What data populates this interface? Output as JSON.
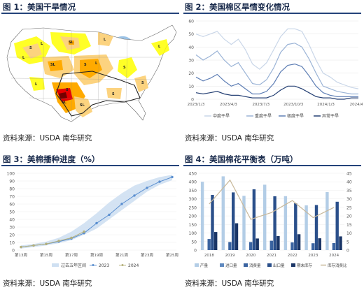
{
  "panels": {
    "p1": {
      "title": "图 1：美国干旱情况",
      "source": "资料来源：USDA 南华研究"
    },
    "p2": {
      "title": "图 2：美国棉区旱情变化情况",
      "source": "资料来源：USDA 南华研究"
    },
    "p3": {
      "title": "图 3：美棉播种进度（%）",
      "source": "资料来源：USDA 南华研究"
    },
    "p4": {
      "title": "图 4：美国棉花平衡表（万吨）",
      "source": "资料来源：USDA 南华研究"
    }
  },
  "map": {
    "labels": [
      "S",
      "L",
      "SL",
      "L",
      "SL",
      "S",
      "L",
      "S",
      "SL",
      "S",
      "S",
      "L",
      "L",
      "S",
      "SL",
      "L"
    ],
    "colors": {
      "D0": "#ffff00",
      "D1": "#fcd37f",
      "D2": "#ffaa00",
      "D3": "#e60000",
      "D4": "#730000",
      "water": "#9cc3e6",
      "land": "#ffffff"
    }
  },
  "chart_data": [
    {
      "type": "line",
      "x_tick_labels": [
        "2023/1/3",
        "2023/4/3",
        "2023/7/3",
        "2023/10/3",
        "2024/1/3",
        "2024/4/3"
      ],
      "ylim": [
        0,
        60
      ],
      "y_ticks": [
        0,
        10,
        20,
        30,
        40,
        50,
        60
      ],
      "series": [
        {
          "name": "中度干旱",
          "color": "#c9d6e8",
          "values": [
            50,
            48,
            50,
            52,
            46,
            42,
            46,
            38,
            27,
            23,
            28,
            38,
            48,
            54,
            54,
            52,
            42,
            30,
            20,
            17,
            13,
            11,
            9,
            8
          ]
        },
        {
          "name": "重度干旱",
          "color": "#9ab3d6",
          "values": [
            34,
            30,
            33,
            37,
            30,
            25,
            28,
            20,
            12,
            11,
            15,
            24,
            36,
            42,
            43,
            40,
            31,
            20,
            10,
            8,
            6,
            5,
            4,
            4
          ]
        },
        {
          "name": "极度干旱",
          "color": "#5f7fb5",
          "values": [
            17,
            14,
            16,
            19,
            14,
            10,
            12,
            8,
            4,
            4,
            6,
            12,
            21,
            26,
            27,
            25,
            18,
            10,
            5,
            3,
            2,
            2,
            2,
            2
          ]
        },
        {
          "name": "异常干旱",
          "color": "#243f73",
          "values": [
            5,
            4,
            5,
            6,
            4,
            3,
            3,
            2,
            1,
            1,
            1,
            3,
            7,
            10,
            10,
            8,
            5,
            2,
            1,
            1,
            0,
            0,
            1,
            1
          ]
        }
      ]
    },
    {
      "type": "line",
      "categories": [
        "第13周",
        "第14周",
        "第15周",
        "第16周",
        "第17周",
        "第18周",
        "第19周",
        "第20周",
        "第21周",
        "第22周",
        "第23周",
        "第24周",
        "第25周"
      ],
      "x_tick_labels": [
        "第13周",
        "第15周",
        "第17周",
        "第19周",
        "第21周",
        "第23周",
        "第25周"
      ],
      "ylim": [
        0,
        100
      ],
      "y_ticks": [
        0,
        10,
        20,
        30,
        40,
        50,
        60,
        70,
        80,
        90,
        100
      ],
      "band": {
        "name": "过去五年区间",
        "color": "#cfe0f2",
        "lower": [
          2,
          4,
          6,
          9,
          13,
          20,
          28,
          40,
          52,
          64,
          76,
          85,
          91
        ],
        "upper": [
          6,
          8,
          11,
          16,
          24,
          35,
          48,
          62,
          74,
          84,
          90,
          95,
          98
        ]
      },
      "series": [
        {
          "name": "2023",
          "color": "#5b8fd0",
          "values": [
            4,
            6,
            8,
            11,
            15,
            22,
            35,
            46,
            60,
            71,
            81,
            89,
            95
          ]
        },
        {
          "name": "2024",
          "color": "#b5b07a",
          "values": [
            4,
            6,
            8,
            12,
            16,
            24,
            null,
            null,
            null,
            null,
            null,
            null,
            null
          ]
        }
      ]
    },
    {
      "type": "bar",
      "categories": [
        "2018",
        "2019",
        "2020",
        "2021",
        "2022",
        "2023",
        "2024"
      ],
      "y_left": {
        "ylim": [
          0,
          450
        ],
        "ticks": [
          0,
          50,
          100,
          150,
          200,
          250,
          300,
          350,
          400,
          450
        ]
      },
      "y_right": {
        "ylim": [
          0,
          45
        ],
        "ticks": [
          0,
          5,
          10,
          15,
          20,
          25,
          30,
          35,
          40,
          45
        ]
      },
      "series": [
        {
          "name": "产量",
          "color": "#b3cde6",
          "values": [
            400,
            432,
            318,
            383,
            316,
            262,
            340
          ]
        },
        {
          "name": "进口量",
          "color": "#5f89bf",
          "values": [
            0,
            0,
            0,
            0,
            0,
            0,
            0
          ]
        },
        {
          "name": "消费量",
          "color": "#3a63a0",
          "values": [
            65,
            47,
            47,
            55,
            45,
            40,
            41
          ]
        },
        {
          "name": "出口量",
          "color": "#2a4f8a",
          "values": [
            323,
            338,
            356,
            315,
            274,
            264,
            283
          ]
        },
        {
          "name": "期末库存",
          "color": "#1a3566",
          "values": [
            106,
            157,
            68,
            82,
            93,
            69,
            80
          ]
        }
      ],
      "line_series": {
        "name": "库存消费比",
        "color": "#c8b89a",
        "axis": "right",
        "values": [
          27,
          41,
          18,
          22,
          29,
          19,
          25
        ]
      }
    }
  ]
}
